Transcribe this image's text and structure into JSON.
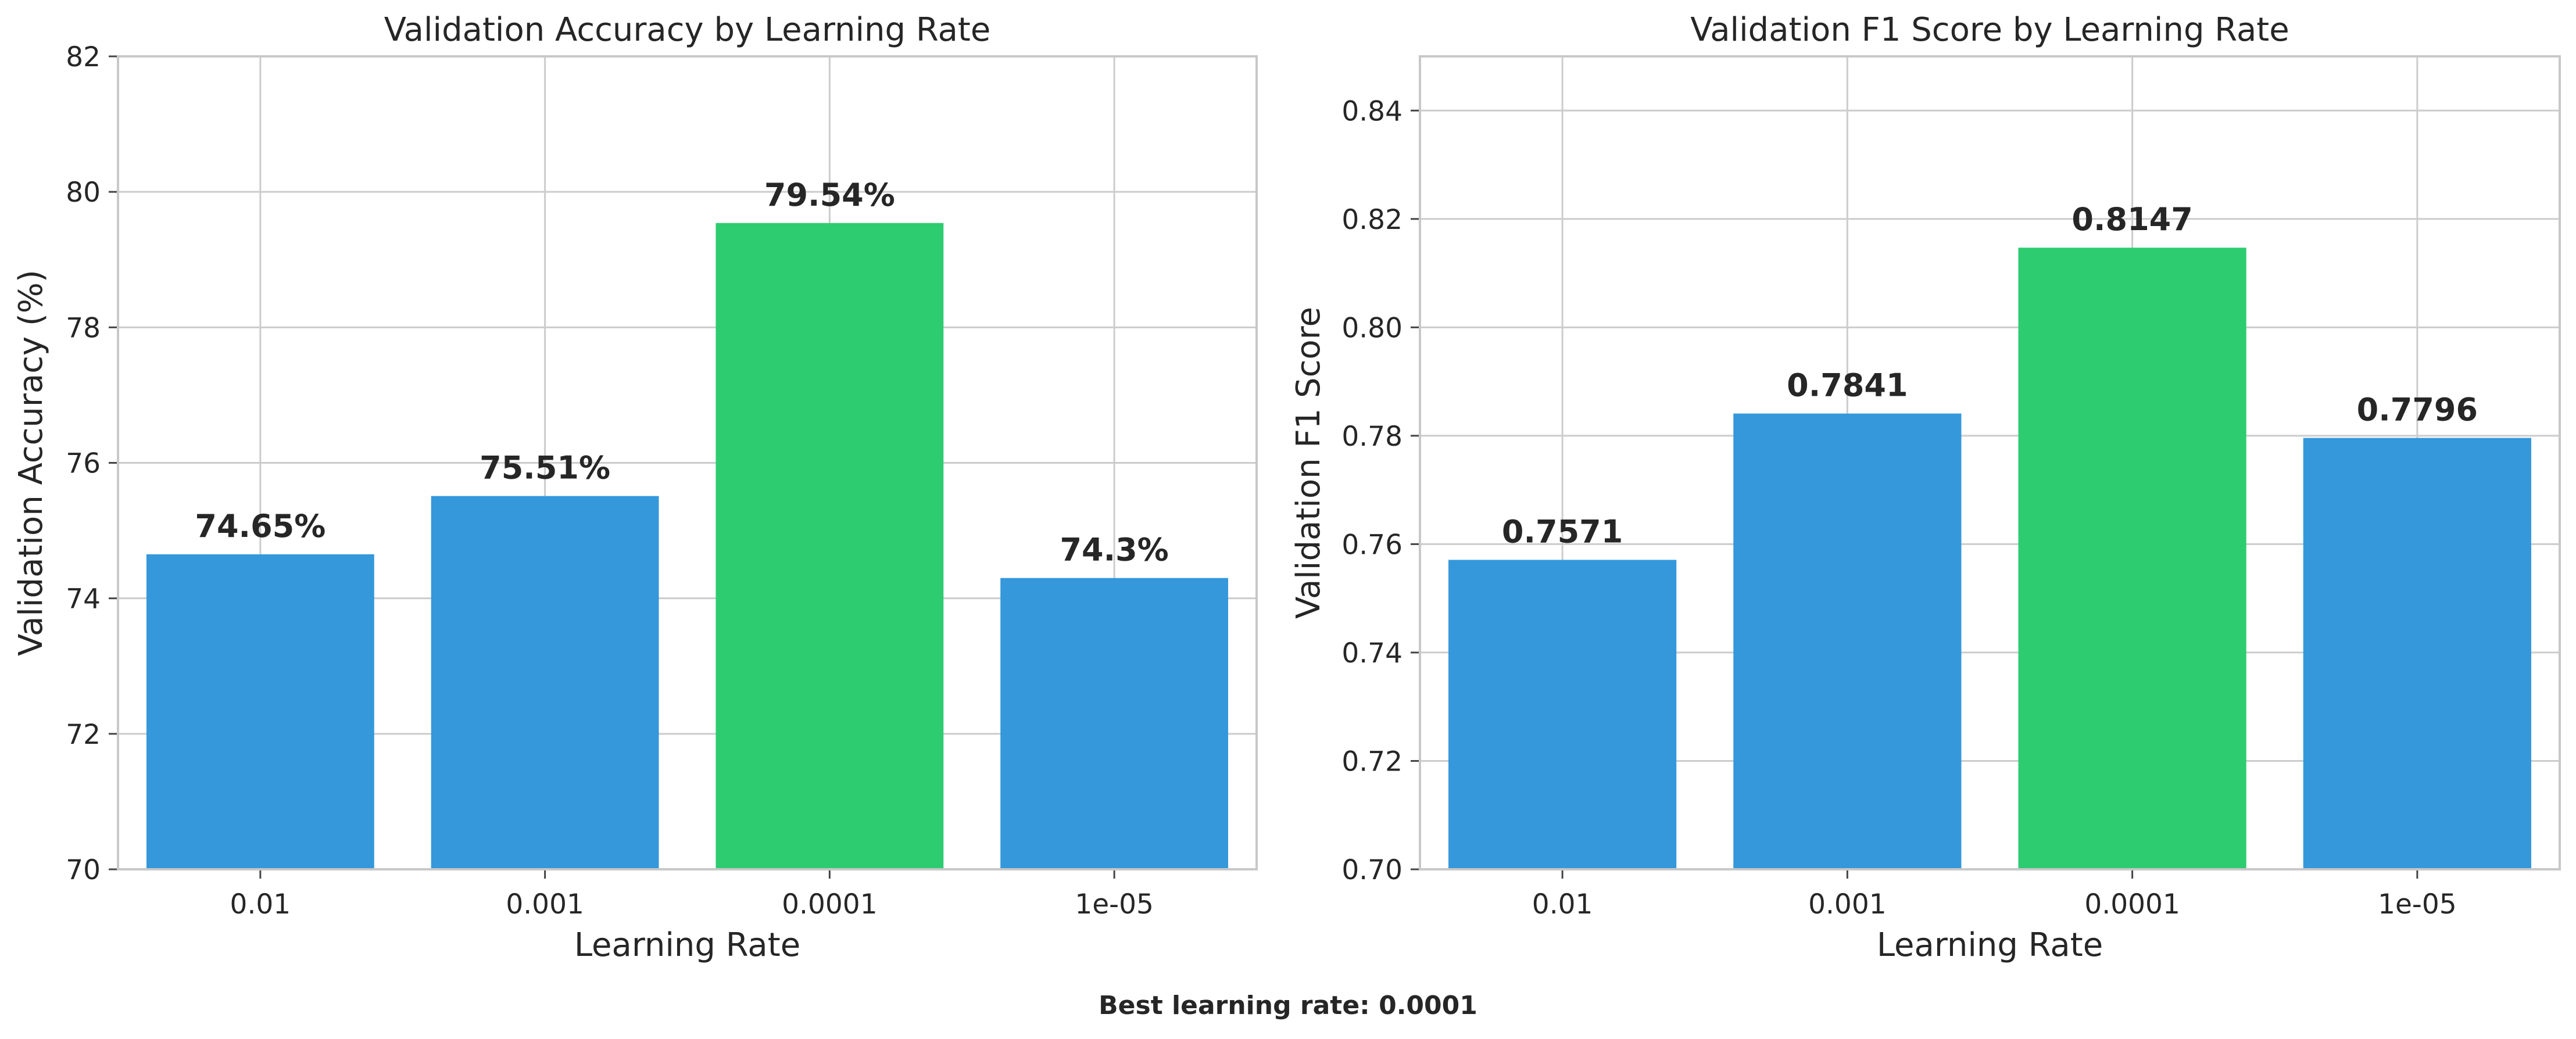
{
  "footer": "Best learning rate: 0.0001",
  "colors": {
    "default_bar": "#3498db",
    "best_bar": "#2ecc71"
  },
  "chart_data": [
    {
      "type": "bar",
      "title": "Validation Accuracy by Learning Rate",
      "xlabel": "Learning Rate",
      "ylabel": "Validation Accuracy (%)",
      "categories": [
        "0.01",
        "0.001",
        "0.0001",
        "1e-05"
      ],
      "values": [
        74.65,
        75.51,
        79.54,
        74.3
      ],
      "value_labels": [
        "74.65%",
        "75.51%",
        "79.54%",
        "74.3%"
      ],
      "ylim": [
        70,
        82
      ],
      "yticks": [
        70,
        72,
        74,
        76,
        78,
        80,
        82
      ],
      "ytick_labels": [
        "70",
        "72",
        "74",
        "76",
        "78",
        "80",
        "82"
      ],
      "highlight_index": 2,
      "grid": true
    },
    {
      "type": "bar",
      "title": "Validation F1 Score by Learning Rate",
      "xlabel": "Learning Rate",
      "ylabel": "Validation F1 Score",
      "categories": [
        "0.01",
        "0.001",
        "0.0001",
        "1e-05"
      ],
      "values": [
        0.7571,
        0.7841,
        0.8147,
        0.7796
      ],
      "value_labels": [
        "0.7571",
        "0.7841",
        "0.8147",
        "0.7796"
      ],
      "ylim": [
        0.7,
        0.85
      ],
      "yticks": [
        0.7,
        0.72,
        0.74,
        0.76,
        0.78,
        0.8,
        0.82,
        0.84
      ],
      "ytick_labels": [
        "0.70",
        "0.72",
        "0.74",
        "0.76",
        "0.78",
        "0.80",
        "0.82",
        "0.84"
      ],
      "highlight_index": 2,
      "grid": true
    }
  ]
}
